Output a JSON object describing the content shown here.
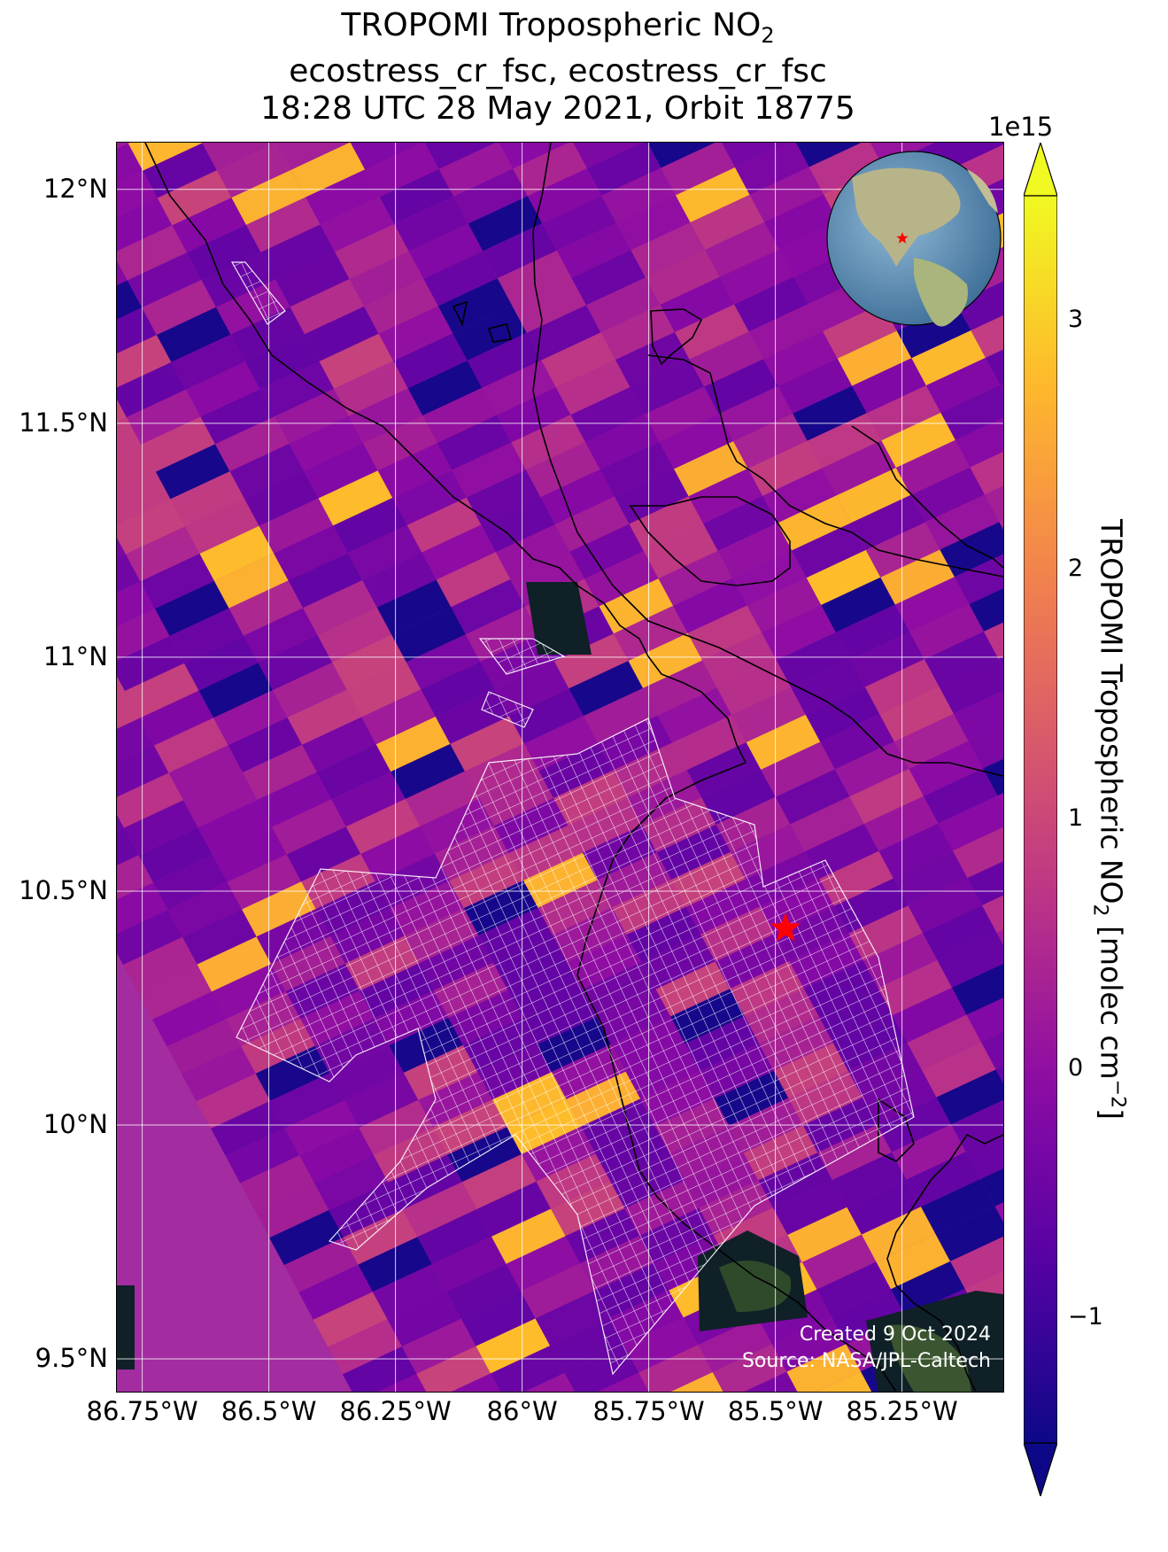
{
  "title": {
    "line1_prefix": "TROPOMI Tropospheric NO",
    "line1_sub": "2",
    "line2": "ecostress_cr_fsc, ecostress_cr_fsc",
    "line3": "18:28 UTC 28 May 2021, Orbit 18775"
  },
  "map": {
    "lat_range": [
      9.43,
      12.1
    ],
    "lon_range": [
      -86.8,
      -85.05
    ],
    "lat_ticks": [
      {
        "value": 12.0,
        "label": "12°N"
      },
      {
        "value": 11.5,
        "label": "11.5°N"
      },
      {
        "value": 11.0,
        "label": "11°N"
      },
      {
        "value": 10.5,
        "label": "10.5°N"
      },
      {
        "value": 10.0,
        "label": "10°N"
      },
      {
        "value": 9.5,
        "label": "9.5°N"
      }
    ],
    "lon_ticks": [
      {
        "value": -86.75,
        "label": "86.75°W"
      },
      {
        "value": -86.5,
        "label": "86.5°W"
      },
      {
        "value": -86.25,
        "label": "86.25°W"
      },
      {
        "value": -86.0,
        "label": "86°W"
      },
      {
        "value": -85.75,
        "label": "85.75°W"
      },
      {
        "value": -85.5,
        "label": "85.5°W"
      },
      {
        "value": -85.25,
        "label": "85.25°W"
      }
    ],
    "site_marker": {
      "lat": 10.42,
      "lon": -85.48,
      "color": "#ff0000"
    },
    "gridline_color": "#ffffff",
    "coastline_color": "#000000",
    "footprint_color": "#ffffff"
  },
  "colorbar": {
    "colormap": "plasma",
    "vmin": -1.5,
    "vmax": 3.5,
    "exponent_label": "1e15",
    "ticks": [
      {
        "value": 3,
        "label": "3"
      },
      {
        "value": 2,
        "label": "2"
      },
      {
        "value": 1,
        "label": "1"
      },
      {
        "value": 0,
        "label": "0"
      },
      {
        "value": -1,
        "label": "−1"
      }
    ],
    "label_prefix": "TROPOMI Tropospheric NO",
    "label_sub": "2",
    "label_mid": " [molec cm",
    "label_sup": "−2",
    "label_suffix": "]"
  },
  "credits": {
    "created": "Created 9 Oct 2024",
    "source": "Source: NASA/JPL-Caltech"
  },
  "inset_globe": {
    "marker_color": "#ff0000"
  }
}
